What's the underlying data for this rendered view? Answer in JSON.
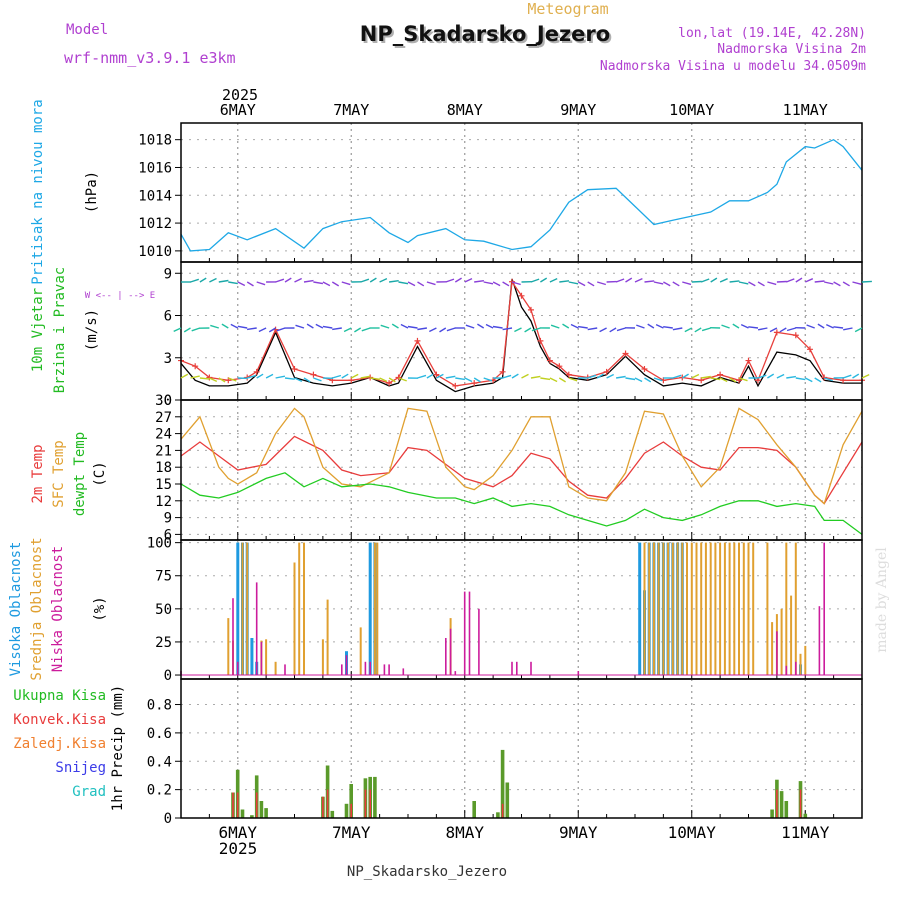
{
  "header": {
    "subtitle": "Meteogram",
    "title": "NP_Skadarsko_Jezero",
    "model_label": "Model",
    "model_name": "wrf-nmm_v3.9.1 e3km",
    "lonlat": "lon,lat (19.14E, 42.28N)",
    "elevation": "Nadmorska Visina 2m",
    "model_elevation": "Nadmorska Visina u modelu 34.0509m",
    "footer": "NP_Skadarsko_Jezero",
    "watermark": "made by Angel"
  },
  "time_axis": {
    "year": "2025",
    "days": [
      "6MAY",
      "7MAY",
      "8MAY",
      "9MAY",
      "10MAY",
      "11MAY"
    ],
    "day_positions_hours": [
      12,
      36,
      60,
      84,
      108,
      132
    ],
    "range_hours": [
      0,
      144
    ]
  },
  "colors": {
    "pressure": "#1ea8e6",
    "wind_obs": "#000000",
    "wind_model": "#e8403c",
    "temp2m": "#e83c3c",
    "sfc_temp": "#e0a030",
    "dewpt": "#22cc22",
    "cloud_high": "#1e9ae0",
    "cloud_mid": "#e0a030",
    "cloud_low": "#cc1c9c",
    "total_precip": "#5a9a2a",
    "conv_precip": "#e83c3c",
    "frozen": "#f08030",
    "snow": "#3c3ce8",
    "hail": "#20c0c0",
    "legend_green": "#22bb22",
    "legend_red": "#e83c3c",
    "legend_orange": "#f08030",
    "legend_blue": "#3c3ce8",
    "legend_cyan": "#20c0c0",
    "purple": "#b040d0"
  },
  "chart_data": [
    {
      "type": "line",
      "name": "pressure",
      "title_lines": [
        "Pritisak na nivou mora"
      ],
      "ylabel": "(hPa)",
      "ylim": [
        1009.2,
        1019.2
      ],
      "yticks": [
        1010,
        1012,
        1014,
        1016,
        1018
      ],
      "series": [
        {
          "name": "Pritisak na nivou mora",
          "x": [
            0,
            2,
            6,
            10,
            14,
            20,
            26,
            30,
            34,
            40,
            44,
            48,
            50,
            56,
            60,
            64,
            70,
            74,
            78,
            82,
            86,
            92,
            96,
            100,
            104,
            108,
            112,
            116,
            120,
            124,
            126,
            128,
            132,
            134,
            138,
            140,
            144
          ],
          "y": [
            1011.2,
            1010.0,
            1010.1,
            1011.3,
            1010.8,
            1011.6,
            1010.2,
            1011.6,
            1012.1,
            1012.4,
            1011.3,
            1010.6,
            1011.1,
            1011.6,
            1010.8,
            1010.7,
            1010.1,
            1010.3,
            1011.5,
            1013.5,
            1014.4,
            1014.5,
            1013.2,
            1011.9,
            1012.2,
            1012.5,
            1012.8,
            1013.6,
            1013.6,
            1014.2,
            1014.8,
            1016.4,
            1017.5,
            1017.4,
            1018.0,
            1017.5,
            1015.8
          ]
        }
      ]
    },
    {
      "type": "line",
      "name": "wind",
      "title_lines": [
        "10m Vjetar",
        "Brzina i Pravac"
      ],
      "ylabel": "(m/s)",
      "direction_key": "W <-- | --> E",
      "ylim": [
        0,
        9.8
      ],
      "yticks": [
        0,
        3,
        6,
        9
      ],
      "series": [
        {
          "name": "wind speed",
          "x": [
            0,
            3,
            6,
            10,
            14,
            16,
            20,
            24,
            28,
            32,
            36,
            40,
            44,
            46,
            50,
            54,
            58,
            62,
            66,
            68,
            70,
            72,
            74,
            76,
            78,
            80,
            82,
            86,
            90,
            94,
            98,
            102,
            106,
            110,
            114,
            118,
            120,
            122,
            126,
            130,
            133,
            136,
            140,
            144
          ],
          "y": [
            2.6,
            1.4,
            1.0,
            1.0,
            1.2,
            1.8,
            4.8,
            1.6,
            1.2,
            1.0,
            1.2,
            1.6,
            1.0,
            1.2,
            3.8,
            1.4,
            0.6,
            1.0,
            1.2,
            1.6,
            8.6,
            6.6,
            5.6,
            3.8,
            2.6,
            2.2,
            1.6,
            1.4,
            1.8,
            3.1,
            1.8,
            1.0,
            1.2,
            1.0,
            1.6,
            1.2,
            2.4,
            1.0,
            3.4,
            3.2,
            2.8,
            1.4,
            1.2,
            1.2
          ]
        },
        {
          "name": "wind speed model",
          "x": [
            0,
            3,
            6,
            10,
            14,
            16,
            20,
            24,
            28,
            32,
            36,
            40,
            44,
            46,
            50,
            54,
            58,
            62,
            66,
            68,
            70,
            72,
            74,
            76,
            78,
            80,
            82,
            86,
            90,
            94,
            98,
            102,
            106,
            110,
            114,
            118,
            120,
            122,
            126,
            130,
            133,
            136,
            140,
            144
          ],
          "y": [
            2.8,
            2.4,
            1.6,
            1.4,
            1.6,
            2.0,
            5.0,
            2.2,
            1.8,
            1.4,
            1.4,
            1.6,
            1.2,
            1.6,
            4.2,
            1.8,
            1.0,
            1.2,
            1.4,
            2.0,
            8.4,
            7.4,
            6.4,
            4.2,
            2.8,
            2.4,
            1.8,
            1.6,
            2.0,
            3.3,
            2.2,
            1.4,
            1.6,
            1.4,
            1.8,
            1.4,
            2.8,
            1.4,
            4.8,
            4.6,
            3.6,
            1.6,
            1.4,
            1.4
          ]
        }
      ]
    },
    {
      "type": "line",
      "name": "temperature",
      "title_lines": [
        "2m Temp",
        "SFC Temp",
        "dewpt Temp"
      ],
      "ylabel": "(C)",
      "ylim": [
        5,
        30
      ],
      "yticks": [
        6,
        9,
        12,
        15,
        18,
        21,
        24,
        27,
        30
      ],
      "series": [
        {
          "name": "2m Temp",
          "x": [
            0,
            4,
            8,
            12,
            18,
            24,
            30,
            34,
            38,
            44,
            48,
            52,
            56,
            60,
            66,
            70,
            74,
            78,
            82,
            86,
            90,
            94,
            98,
            102,
            106,
            110,
            114,
            118,
            122,
            126,
            130,
            134,
            136,
            140,
            144
          ],
          "y": [
            20,
            22.5,
            20,
            17.5,
            18.5,
            23.5,
            21,
            17.5,
            16.5,
            17,
            21.5,
            21,
            18.5,
            16,
            14.5,
            16.5,
            20.5,
            19.5,
            15.5,
            13,
            12.5,
            16,
            20.5,
            22.5,
            20,
            18,
            17.5,
            21.5,
            21.5,
            21,
            18,
            13,
            11.5,
            17,
            22.5
          ]
        },
        {
          "name": "SFC Temp",
          "x": [
            0,
            4,
            8,
            10,
            12,
            16,
            20,
            24,
            26,
            30,
            34,
            38,
            44,
            48,
            52,
            56,
            60,
            62,
            66,
            70,
            74,
            78,
            82,
            86,
            90,
            94,
            98,
            102,
            106,
            110,
            114,
            118,
            122,
            126,
            130,
            134,
            136,
            140,
            144
          ],
          "y": [
            23,
            27,
            18,
            16,
            15,
            17,
            24,
            28.5,
            27,
            18,
            15,
            14.5,
            17,
            28.5,
            28,
            18,
            14.5,
            14,
            16.5,
            21,
            27,
            27,
            14.5,
            12.5,
            12,
            17,
            28,
            27.5,
            20,
            14.5,
            18,
            28.5,
            26.5,
            22,
            18,
            13,
            11.5,
            22,
            28
          ]
        },
        {
          "name": "dewpt Temp",
          "x": [
            0,
            4,
            8,
            12,
            18,
            22,
            26,
            30,
            34,
            40,
            44,
            48,
            54,
            58,
            62,
            66,
            70,
            74,
            78,
            82,
            86,
            90,
            94,
            98,
            102,
            106,
            110,
            114,
            118,
            122,
            126,
            130,
            134,
            136,
            140,
            144
          ],
          "y": [
            15,
            13,
            12.5,
            13.5,
            16,
            17,
            14.5,
            16,
            14.5,
            15,
            14.5,
            13.5,
            12.5,
            12.5,
            11.5,
            12.5,
            11,
            11.5,
            11,
            9.5,
            8.5,
            7.5,
            8.5,
            10.5,
            9,
            8.5,
            9.5,
            11,
            12,
            12,
            11,
            11.5,
            11,
            8.5,
            8.5,
            6
          ]
        }
      ]
    },
    {
      "type": "bar",
      "name": "clouds",
      "title_lines": [
        "Visoka Oblacnost",
        "Srednja Oblacnost",
        "Niska Oblacnost"
      ],
      "ylabel": "(%)",
      "ylim": [
        -3,
        102
      ],
      "yticks": [
        0,
        25,
        50,
        75,
        100
      ],
      "series": [
        {
          "name": "Visoka Oblacnost",
          "x": [
            12,
            13,
            14,
            15,
            16,
            35,
            40,
            41,
            97,
            98,
            99,
            100,
            101,
            102,
            103,
            104,
            105,
            106,
            131
          ],
          "values": [
            100,
            100,
            100,
            28,
            10,
            18,
            100,
            100,
            100,
            64,
            100,
            100,
            100,
            100,
            100,
            100,
            100,
            100,
            8
          ]
        },
        {
          "name": "Srednja Oblacnost",
          "x": [
            10,
            11,
            13,
            14,
            17,
            18,
            20,
            24,
            25,
            26,
            30,
            31,
            38,
            41,
            41.5,
            57,
            98,
            99,
            100,
            101,
            102,
            103,
            104,
            105,
            106,
            107,
            108,
            109,
            110,
            111,
            112,
            113,
            114,
            115,
            116,
            117,
            118,
            119,
            120,
            121,
            124,
            125,
            126,
            127,
            128,
            129,
            130,
            131,
            132
          ],
          "values": [
            43,
            26,
            100,
            100,
            26,
            27,
            10,
            85,
            100,
            100,
            27,
            57,
            36,
            100,
            100,
            43,
            100,
            100,
            100,
            100,
            100,
            100,
            100,
            100,
            100,
            100,
            100,
            100,
            100,
            100,
            100,
            100,
            100,
            100,
            100,
            100,
            100,
            100,
            100,
            100,
            100,
            40,
            46,
            50,
            100,
            60,
            100,
            16,
            22
          ]
        },
        {
          "name": "Niska Oblacnost",
          "x": [
            0,
            11,
            12,
            16,
            17,
            22,
            34,
            35,
            39,
            40,
            43,
            44,
            47,
            56,
            57,
            58,
            60,
            61,
            63,
            70,
            71,
            74,
            84,
            126,
            128,
            130,
            135,
            136
          ],
          "values": [
            3,
            58,
            10,
            70,
            25,
            8,
            8,
            15,
            10,
            10,
            8,
            8,
            5,
            28,
            35,
            3,
            63,
            63,
            50,
            10,
            10,
            10,
            3,
            33,
            7,
            10,
            52,
            100
          ]
        }
      ]
    },
    {
      "type": "bar",
      "name": "precipitation",
      "title_lines": [
        "Ukupna Kisa",
        "Konvek.Kisa",
        "Zaledj.Kisa",
        "Snijeg",
        "Grad"
      ],
      "ylabel": "1hr Precip (mm)",
      "ylim": [
        0,
        0.98
      ],
      "yticks": [
        0,
        0.2,
        0.4,
        0.6,
        0.8
      ],
      "series": [
        {
          "name": "Ukupna Kisa",
          "x": [
            11,
            12,
            13,
            15,
            16,
            17,
            18,
            30,
            31,
            32,
            35,
            36,
            39,
            40,
            41,
            62,
            67,
            68,
            69,
            125,
            126,
            127,
            128,
            131,
            132
          ],
          "values": [
            0.18,
            0.34,
            0.06,
            0.02,
            0.3,
            0.12,
            0.07,
            0.15,
            0.37,
            0.05,
            0.1,
            0.24,
            0.28,
            0.29,
            0.29,
            0.12,
            0.04,
            0.48,
            0.25,
            0.06,
            0.27,
            0.19,
            0.12,
            0.26,
            0.03
          ]
        },
        {
          "name": "Konvek.Kisa",
          "x": [
            11,
            12,
            16,
            30,
            31,
            36,
            39,
            40,
            68,
            126,
            131
          ],
          "values": [
            0.18,
            0.18,
            0.18,
            0.15,
            0.2,
            0.1,
            0.2,
            0.2,
            0.1,
            0.2,
            0.2
          ]
        }
      ]
    }
  ]
}
